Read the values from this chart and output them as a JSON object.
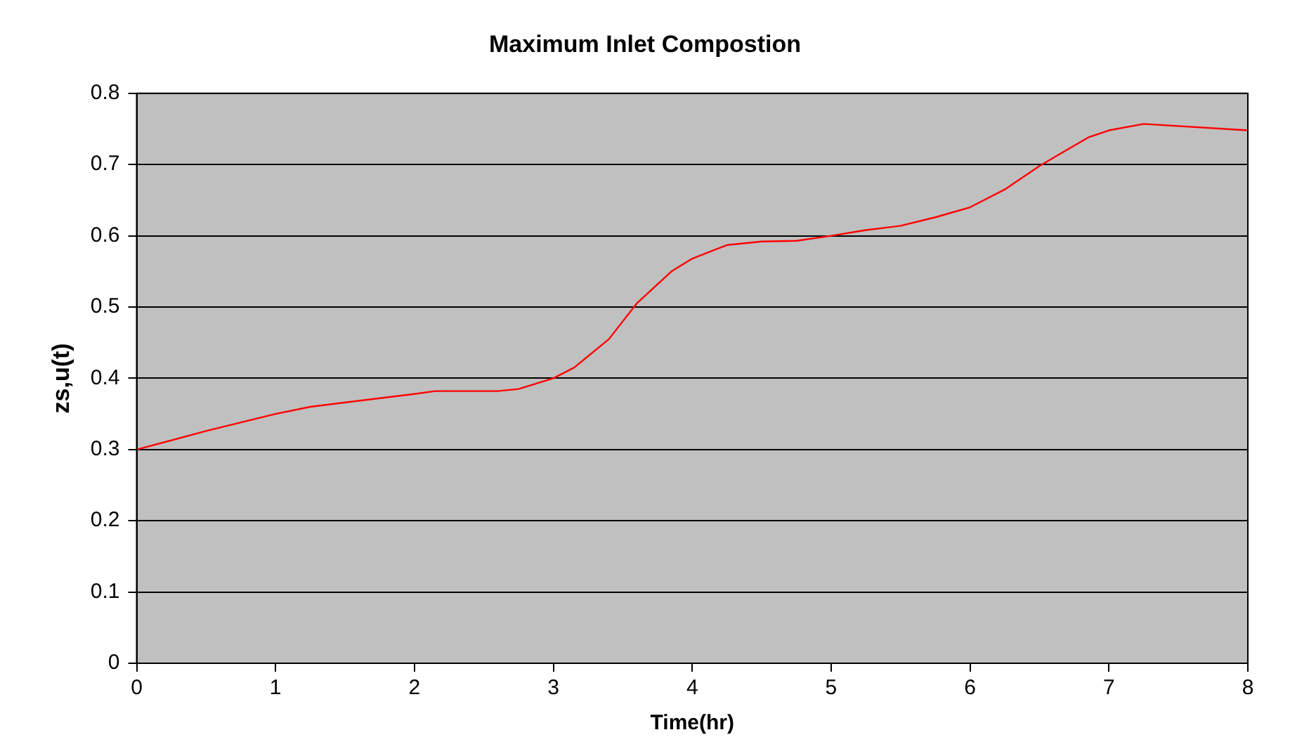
{
  "chart_data": {
    "type": "line",
    "title": "Maximum Inlet Compostion",
    "xlabel": "Time(hr)",
    "ylabel": "zs,u(t)",
    "x": [
      0,
      0.5,
      1,
      1.25,
      2,
      2.15,
      2.6,
      2.75,
      3,
      3.15,
      3.4,
      3.6,
      3.85,
      4,
      4.25,
      4.5,
      4.75,
      5,
      5.25,
      5.5,
      5.75,
      6,
      6.25,
      6.5,
      6.85,
      7,
      7.25,
      8
    ],
    "series": [
      {
        "color": "#ff0000",
        "values": [
          0.3,
          0.326,
          0.35,
          0.36,
          0.378,
          0.382,
          0.382,
          0.385,
          0.4,
          0.415,
          0.455,
          0.505,
          0.55,
          0.568,
          0.587,
          0.592,
          0.593,
          0.6,
          0.608,
          0.614,
          0.626,
          0.64,
          0.665,
          0.698,
          0.738,
          0.748,
          0.757,
          0.748
        ]
      }
    ],
    "xlim": [
      0,
      8
    ],
    "xticks": [
      0,
      1,
      2,
      3,
      4,
      5,
      6,
      7,
      8
    ],
    "ylim": [
      0,
      0.8
    ],
    "yticks": [
      0,
      0.1,
      0.2,
      0.3,
      0.4,
      0.5,
      0.6,
      0.7,
      0.8
    ],
    "grid": "y",
    "legend": false,
    "marker": "none",
    "line_style": "solid"
  }
}
